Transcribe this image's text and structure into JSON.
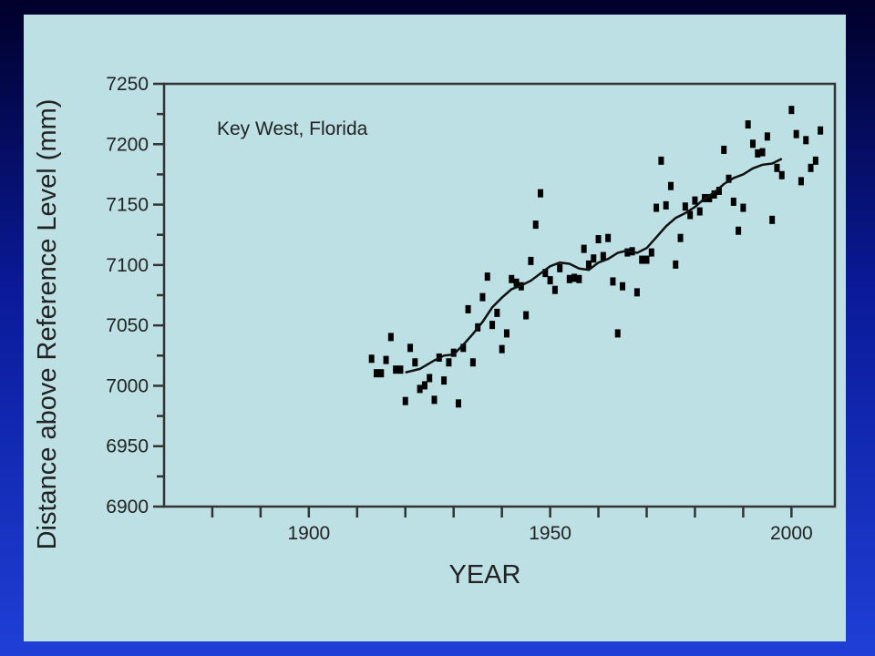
{
  "chart_data": {
    "type": "scatter",
    "annotation": "Key West, Florida",
    "xlabel": "YEAR",
    "ylabel": "Distance above Reference Level (mm)",
    "xlim": [
      1870,
      2009
    ],
    "ylim": [
      6900,
      7250
    ],
    "x_ticks": [
      1900,
      1950,
      2000
    ],
    "y_ticks": [
      6900,
      6950,
      7000,
      7050,
      7100,
      7150,
      7200,
      7250
    ],
    "series": [
      {
        "kind": "points",
        "points": [
          [
            1913,
            7022
          ],
          [
            1914,
            7010
          ],
          [
            1915,
            7010
          ],
          [
            1916,
            7021
          ],
          [
            1917,
            7040
          ],
          [
            1918,
            7013
          ],
          [
            1919,
            7013
          ],
          [
            1920,
            6987
          ],
          [
            1921,
            7031
          ],
          [
            1922,
            7019
          ],
          [
            1923,
            6997
          ],
          [
            1924,
            7000
          ],
          [
            1925,
            7006
          ],
          [
            1926,
            6988
          ],
          [
            1927,
            7023
          ],
          [
            1928,
            7004
          ],
          [
            1929,
            7019
          ],
          [
            1930,
            7027
          ],
          [
            1931,
            6985
          ],
          [
            1932,
            7031
          ],
          [
            1933,
            7063
          ],
          [
            1934,
            7019
          ],
          [
            1935,
            7048
          ],
          [
            1936,
            7073
          ],
          [
            1937,
            7090
          ],
          [
            1938,
            7050
          ],
          [
            1939,
            7060
          ],
          [
            1940,
            7030
          ],
          [
            1941,
            7043
          ],
          [
            1942,
            7088
          ],
          [
            1943,
            7085
          ],
          [
            1944,
            7082
          ],
          [
            1945,
            7058
          ],
          [
            1946,
            7103
          ],
          [
            1947,
            7133
          ],
          [
            1948,
            7159
          ],
          [
            1949,
            7093
          ],
          [
            1950,
            7087
          ],
          [
            1951,
            7079
          ],
          [
            1952,
            7097
          ],
          [
            1954,
            7088
          ],
          [
            1955,
            7089
          ],
          [
            1956,
            7088
          ],
          [
            1957,
            7113
          ],
          [
            1958,
            7100
          ],
          [
            1959,
            7105
          ],
          [
            1960,
            7121
          ],
          [
            1961,
            7107
          ],
          [
            1962,
            7122
          ],
          [
            1963,
            7086
          ],
          [
            1964,
            7043
          ],
          [
            1965,
            7082
          ],
          [
            1966,
            7110
          ],
          [
            1967,
            7111
          ],
          [
            1968,
            7077
          ],
          [
            1969,
            7104
          ],
          [
            1970,
            7104
          ],
          [
            1971,
            7110
          ],
          [
            1972,
            7147
          ],
          [
            1973,
            7186
          ],
          [
            1974,
            7149
          ],
          [
            1975,
            7165
          ],
          [
            1976,
            7100
          ],
          [
            1977,
            7122
          ],
          [
            1978,
            7148
          ],
          [
            1979,
            7141
          ],
          [
            1980,
            7153
          ],
          [
            1981,
            7144
          ],
          [
            1982,
            7155
          ],
          [
            1983,
            7155
          ],
          [
            1984,
            7158
          ],
          [
            1985,
            7161
          ],
          [
            1986,
            7195
          ],
          [
            1987,
            7171
          ],
          [
            1988,
            7152
          ],
          [
            1989,
            7128
          ],
          [
            1990,
            7147
          ],
          [
            1991,
            7216
          ],
          [
            1992,
            7200
          ],
          [
            1993,
            7192
          ],
          [
            1994,
            7193
          ],
          [
            1995,
            7206
          ],
          [
            1996,
            7137
          ],
          [
            1997,
            7180
          ],
          [
            1998,
            7174
          ],
          [
            2000,
            7228
          ],
          [
            2001,
            7208
          ],
          [
            2002,
            7169
          ],
          [
            2003,
            7203
          ],
          [
            2004,
            7180
          ],
          [
            2005,
            7186
          ],
          [
            2006,
            7211
          ]
        ]
      },
      {
        "kind": "line",
        "points": [
          [
            1920,
            7011
          ],
          [
            1923,
            7014
          ],
          [
            1926,
            7021
          ],
          [
            1928,
            7025
          ],
          [
            1930,
            7026
          ],
          [
            1932,
            7034
          ],
          [
            1934,
            7043
          ],
          [
            1936,
            7053
          ],
          [
            1938,
            7065
          ],
          [
            1940,
            7073
          ],
          [
            1942,
            7080
          ],
          [
            1944,
            7083
          ],
          [
            1946,
            7087
          ],
          [
            1948,
            7093
          ],
          [
            1950,
            7099
          ],
          [
            1952,
            7102
          ],
          [
            1954,
            7101
          ],
          [
            1956,
            7097
          ],
          [
            1958,
            7096
          ],
          [
            1960,
            7102
          ],
          [
            1962,
            7105
          ],
          [
            1964,
            7110
          ],
          [
            1966,
            7112
          ],
          [
            1968,
            7110
          ],
          [
            1970,
            7114
          ],
          [
            1972,
            7123
          ],
          [
            1974,
            7132
          ],
          [
            1976,
            7139
          ],
          [
            1978,
            7143
          ],
          [
            1980,
            7148
          ],
          [
            1982,
            7155
          ],
          [
            1984,
            7160
          ],
          [
            1986,
            7167
          ],
          [
            1988,
            7172
          ],
          [
            1990,
            7175
          ],
          [
            1992,
            7180
          ],
          [
            1994,
            7183
          ],
          [
            1996,
            7184
          ],
          [
            1998,
            7188
          ]
        ]
      }
    ]
  }
}
